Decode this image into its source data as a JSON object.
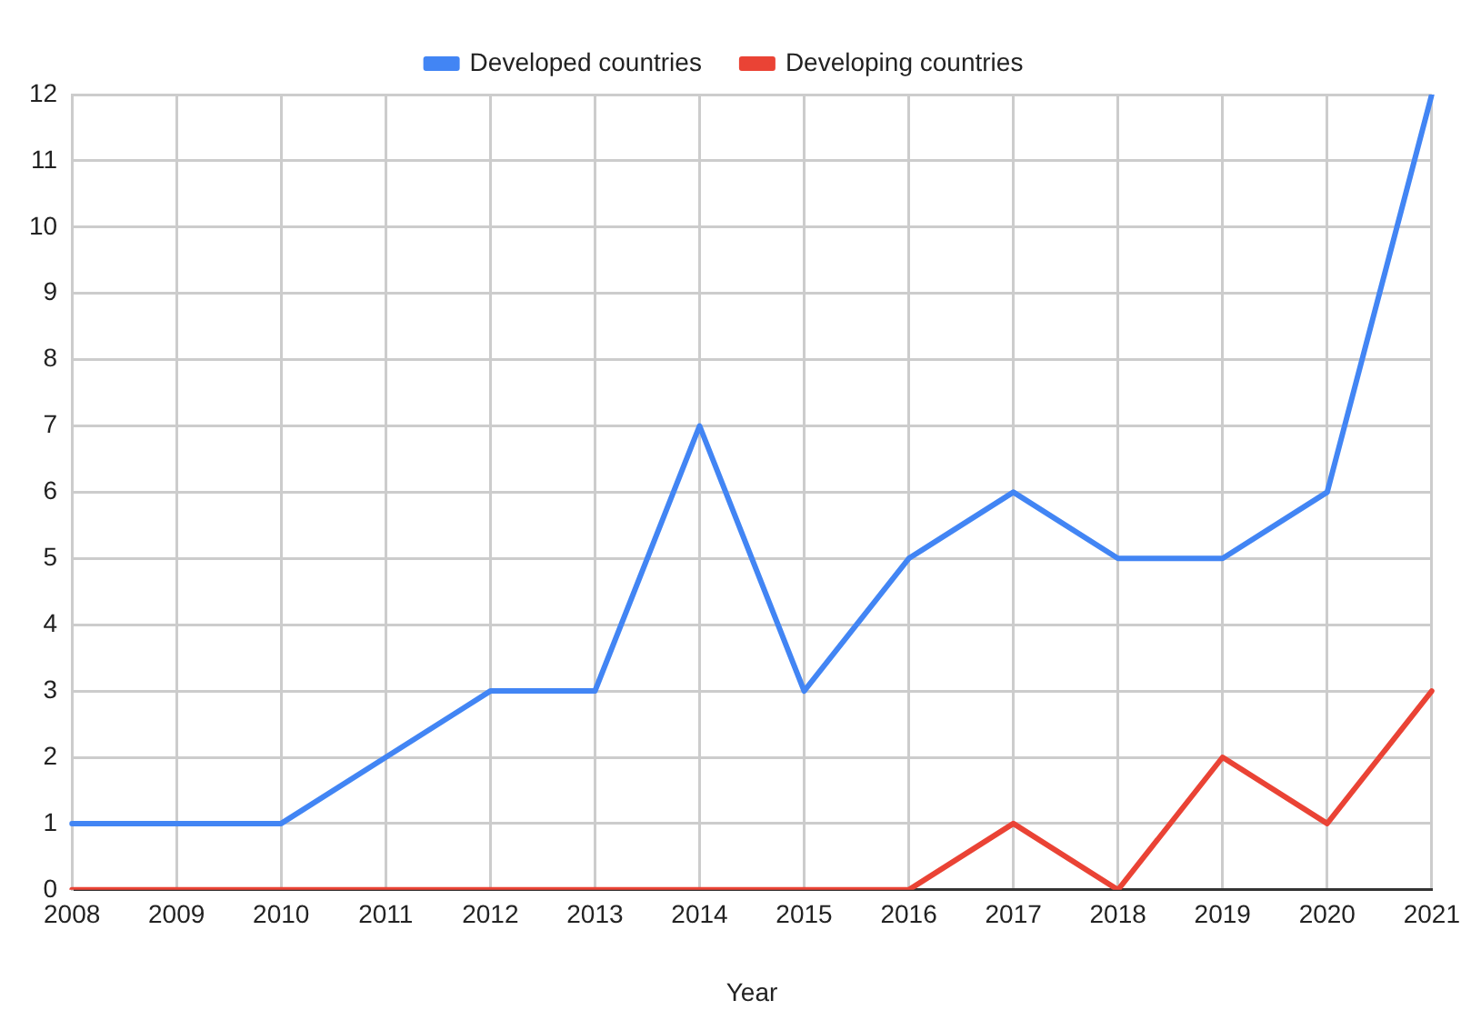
{
  "chart_data": {
    "type": "line",
    "xlabel": "Year",
    "categories": [
      "2008",
      "2009",
      "2010",
      "2011",
      "2012",
      "2013",
      "2014",
      "2015",
      "2016",
      "2017",
      "2018",
      "2019",
      "2020",
      "2021"
    ],
    "series": [
      {
        "name": "Developed countries",
        "color": "#4285f4",
        "values": [
          1,
          1,
          1,
          2,
          3,
          3,
          7,
          3,
          5,
          6,
          5,
          5,
          6,
          12
        ]
      },
      {
        "name": "Developing countries",
        "color": "#ea4335",
        "values": [
          0,
          0,
          0,
          0,
          0,
          0,
          0,
          0,
          0,
          1,
          0,
          2,
          1,
          3
        ]
      }
    ],
    "ylim": [
      0,
      12
    ],
    "yticks": [
      0,
      1,
      2,
      3,
      4,
      5,
      6,
      7,
      8,
      9,
      10,
      11,
      12
    ],
    "grid": true,
    "legend": "top"
  }
}
